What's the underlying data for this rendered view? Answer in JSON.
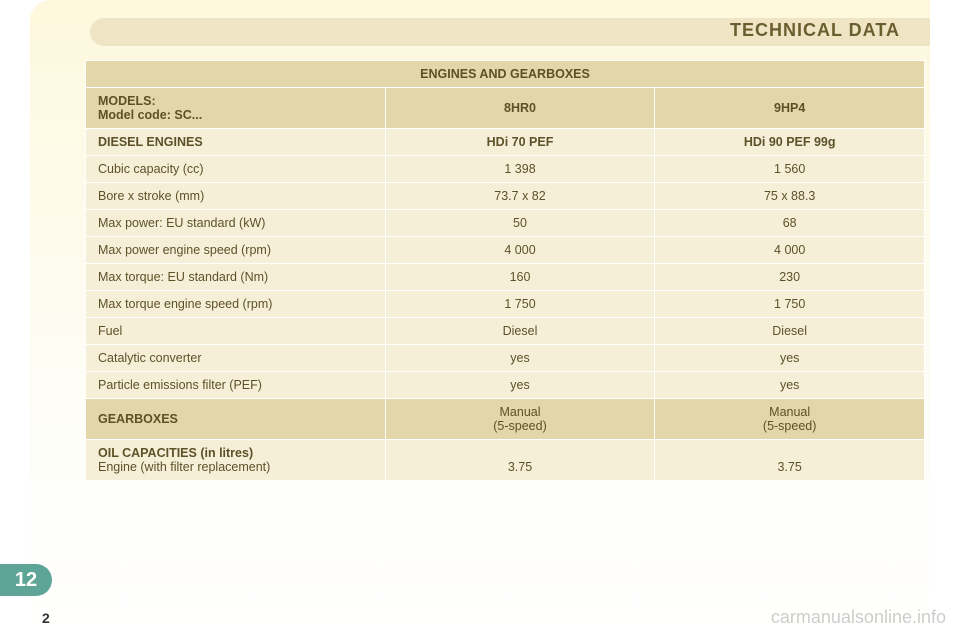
{
  "title": "TECHNICAL DATA",
  "tableTitle": "ENGINES AND GEARBOXES",
  "models": {
    "label": "MODELS:",
    "sub": "Model code: SC...",
    "a": "8HR0",
    "b": "9HP4"
  },
  "diesel": {
    "label": "DIESEL ENGINES",
    "a": "HDi 70 PEF",
    "b": "HDi 90 PEF 99g"
  },
  "rows": [
    {
      "label": "Cubic capacity (cc)",
      "a": "1 398",
      "b": "1 560"
    },
    {
      "label": "Bore x stroke (mm)",
      "a": "73.7 x 82",
      "b": "75 x 88.3"
    },
    {
      "label": "Max power: EU standard (kW)",
      "a": "50",
      "b": "68"
    },
    {
      "label": "Max power engine speed (rpm)",
      "a": "4 000",
      "b": "4 000"
    },
    {
      "label": "Max torque: EU standard (Nm)",
      "a": "160",
      "b": "230"
    },
    {
      "label": "Max torque engine speed (rpm)",
      "a": "1 750",
      "b": "1 750"
    },
    {
      "label": "Fuel",
      "a": "Diesel",
      "b": "Diesel"
    },
    {
      "label": "Catalytic converter",
      "a": "yes",
      "b": "yes"
    },
    {
      "label": "Particle emissions filter (PEF)",
      "a": "yes",
      "b": "yes"
    }
  ],
  "gearboxes": {
    "label": "GEARBOXES",
    "a1": "Manual",
    "a2": "(5-speed)",
    "b1": "Manual",
    "b2": "(5-speed)"
  },
  "oil": {
    "header": "OIL CAPACITIES (in litres)",
    "label": "Engine (with filter replacement)",
    "a": "3.75",
    "b": "3.75"
  },
  "section": "12",
  "pageNum": "2",
  "watermark": "carmanualsonline.info",
  "colors": {
    "pageGradientTop": "#fdf8dd",
    "headerBand": "#efe5c5",
    "titleText": "#6a5d2e",
    "hdrBg": "#e3d6a8",
    "dataBg": "#f5efd8",
    "badgeBg": "#5fa597",
    "cellBorder": "#ffffff"
  }
}
